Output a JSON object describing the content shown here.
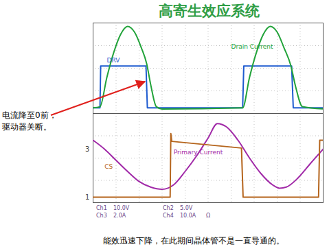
{
  "title": "高寄生效应系统",
  "callout": [
    "电流降至0前，",
    "驱动器关断。"
  ],
  "caption": "能效迅速下降，在此期间晶体管不是一直导通的。",
  "readouts": [
    [
      "Ch1",
      "10.0V",
      "Ch2",
      "5.0V"
    ],
    [
      "Ch3",
      "2.0A",
      "Ch4",
      "10.0A",
      "Ω"
    ]
  ],
  "chart_data": [
    {
      "type": "line",
      "tick_labels": false,
      "grid": true,
      "xlim": [
        0,
        10
      ],
      "xticks": [
        0,
        1,
        2,
        3,
        4,
        5,
        6,
        7,
        8,
        9,
        10
      ],
      "ylim": [
        0,
        4
      ],
      "yticks": [
        0,
        1,
        2,
        3,
        4
      ],
      "series": [
        {
          "name": "DRV",
          "color": "#1e5bd0",
          "line_style": "solid",
          "x": [
            0,
            0.3,
            0.33,
            2.3,
            2.36,
            6.5,
            6.55,
            8.63,
            8.7,
            10
          ],
          "values": [
            0.25,
            0.25,
            2.1,
            2.1,
            0.25,
            0.25,
            2.1,
            2.1,
            0.25,
            0.25
          ]
        },
        {
          "name": "Drain Current",
          "color": "#22a33a",
          "line_style": "smooth",
          "x": [
            0,
            0.3,
            0.6,
            0.9,
            1.2,
            1.5,
            1.8,
            2.1,
            2.33,
            2.5,
            2.75,
            3,
            6.5,
            6.8,
            7.1,
            7.4,
            7.7,
            8.0,
            8.3,
            8.6,
            8.8,
            9.1,
            10
          ],
          "values": [
            0.25,
            0.3,
            1.6,
            2.7,
            3.5,
            3.85,
            3.6,
            2.9,
            2.2,
            1.3,
            0.3,
            0.2,
            0.25,
            1.6,
            2.7,
            3.5,
            3.85,
            3.6,
            2.9,
            2.1,
            1.2,
            0.3,
            0.2
          ]
        }
      ],
      "annotations": [
        {
          "text": "DRV",
          "x": 0.6,
          "y": 2.35
        },
        {
          "text": "Drain Current",
          "x": 6.0,
          "y": 2.95
        }
      ]
    },
    {
      "type": "line",
      "tick_labels": false,
      "grid": true,
      "xlim": [
        0,
        10
      ],
      "xticks": [
        0,
        1,
        2,
        3,
        4,
        5,
        6,
        7,
        8,
        9,
        10
      ],
      "ylim": [
        0,
        4
      ],
      "yticks": [
        0,
        1,
        2,
        3,
        4
      ],
      "series": [
        {
          "name": "Primary Current",
          "color": "#a12aa8",
          "line_style": "smooth",
          "x": [
            0,
            0.5,
            1,
            1.5,
            2,
            2.5,
            3,
            3.5,
            4,
            4.5,
            5,
            5.4,
            5.8,
            6.3,
            6.8,
            7.3,
            7.8,
            8.1,
            8.4,
            8.9,
            9.4,
            10
          ],
          "values": [
            2.8,
            2.4,
            1.9,
            1.4,
            0.95,
            0.7,
            0.6,
            0.8,
            1.4,
            2.1,
            2.9,
            3.55,
            3.4,
            2.8,
            2.0,
            1.3,
            0.8,
            0.65,
            0.7,
            1.1,
            1.7,
            2.4
          ]
        },
        {
          "name": "CS",
          "color": "#b5651d",
          "line_style": "solid",
          "x": [
            0,
            3.35,
            3.38,
            3.42,
            6.45,
            6.52,
            9.8,
            9.85,
            10
          ],
          "values": [
            0.25,
            0.25,
            3.1,
            2.75,
            2.45,
            0.25,
            0.25,
            2.8,
            2.8
          ]
        }
      ],
      "annotations": [
        {
          "text": "Primary Current",
          "x": 3.5,
          "y": 2.25
        },
        {
          "text": "CS",
          "x": 0.5,
          "y": 1.6
        },
        {
          "text": "3",
          "x": -0.15,
          "y": 2.4
        },
        {
          "text": "1",
          "x": -0.15,
          "y": 0.25
        }
      ]
    }
  ]
}
